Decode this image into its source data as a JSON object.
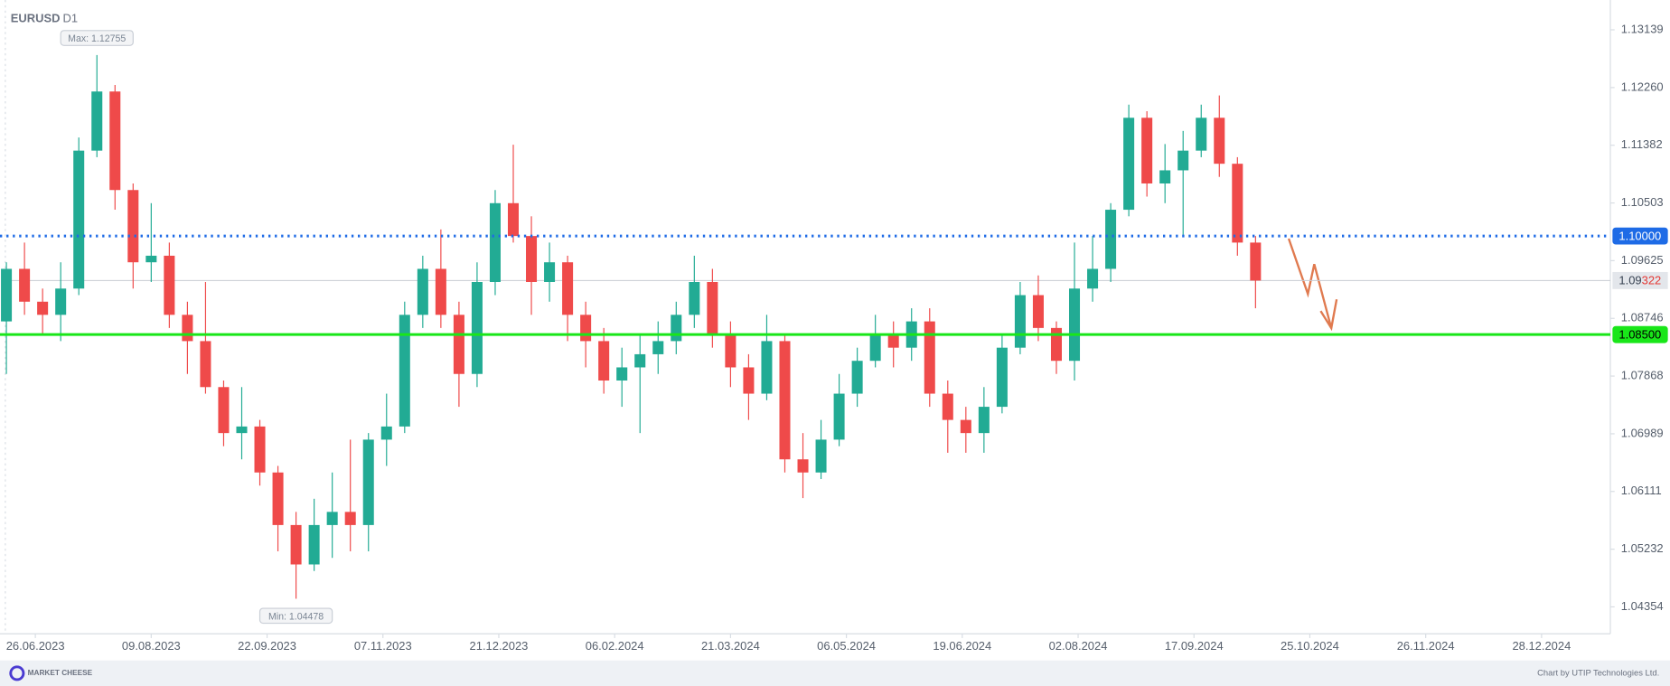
{
  "chart_data": {
    "type": "candlestick",
    "title": "EURUSD",
    "timeframe": "D1",
    "up_color": "#22ab94",
    "down_color": "#ef4a4a",
    "x": [
      0,
      5,
      10,
      15,
      20,
      25,
      30,
      35,
      40,
      45,
      50,
      55,
      60,
      65,
      70,
      75,
      80,
      85,
      90,
      95,
      100,
      105,
      110,
      115,
      120,
      125,
      130,
      135,
      140,
      145,
      150,
      155,
      160,
      165,
      170,
      175,
      180,
      185,
      190,
      195,
      200,
      205,
      210,
      215,
      220,
      225,
      230,
      235,
      240,
      245,
      250,
      255,
      260,
      265,
      270,
      275,
      280,
      285,
      290,
      295,
      300,
      305,
      310,
      315,
      320,
      325,
      330,
      335,
      340,
      345
    ],
    "open": [
      1.087,
      1.095,
      1.09,
      1.088,
      1.092,
      1.113,
      1.122,
      1.107,
      1.096,
      1.097,
      1.088,
      1.084,
      1.077,
      1.07,
      1.071,
      1.064,
      1.056,
      1.05,
      1.056,
      1.058,
      1.056,
      1.069,
      1.071,
      1.088,
      1.095,
      1.088,
      1.079,
      1.093,
      1.105,
      1.1,
      1.093,
      1.096,
      1.088,
      1.084,
      1.078,
      1.08,
      1.082,
      1.084,
      1.088,
      1.093,
      1.085,
      1.08,
      1.076,
      1.084,
      1.066,
      1.064,
      1.069,
      1.076,
      1.081,
      1.085,
      1.083,
      1.087,
      1.076,
      1.072,
      1.07,
      1.074,
      1.083,
      1.091,
      1.086,
      1.081,
      1.092,
      1.095,
      1.104,
      1.118,
      1.108,
      1.11,
      1.113,
      1.118,
      1.111,
      1.099
    ],
    "high": [
      1.096,
      1.099,
      1.092,
      1.096,
      1.115,
      1.12755,
      1.123,
      1.108,
      1.105,
      1.099,
      1.09,
      1.093,
      1.078,
      1.077,
      1.072,
      1.065,
      1.058,
      1.06,
      1.064,
      1.069,
      1.07,
      1.076,
      1.09,
      1.097,
      1.101,
      1.09,
      1.096,
      1.107,
      1.1139,
      1.103,
      1.099,
      1.097,
      1.09,
      1.086,
      1.083,
      1.085,
      1.087,
      1.09,
      1.097,
      1.095,
      1.087,
      1.082,
      1.088,
      1.085,
      1.07,
      1.072,
      1.079,
      1.083,
      1.088,
      1.087,
      1.089,
      1.089,
      1.078,
      1.074,
      1.077,
      1.085,
      1.093,
      1.094,
      1.087,
      1.099,
      1.1,
      1.105,
      1.12,
      1.119,
      1.114,
      1.116,
      1.12,
      1.1214,
      1.112,
      1.1
    ],
    "low": [
      1.079,
      1.088,
      1.085,
      1.084,
      1.091,
      1.112,
      1.104,
      1.092,
      1.093,
      1.086,
      1.079,
      1.076,
      1.068,
      1.066,
      1.062,
      1.052,
      1.04478,
      1.049,
      1.051,
      1.052,
      1.052,
      1.065,
      1.07,
      1.086,
      1.086,
      1.074,
      1.077,
      1.091,
      1.099,
      1.088,
      1.09,
      1.084,
      1.08,
      1.076,
      1.074,
      1.07,
      1.079,
      1.082,
      1.086,
      1.083,
      1.077,
      1.072,
      1.075,
      1.064,
      1.0601,
      1.063,
      1.068,
      1.074,
      1.08,
      1.08,
      1.081,
      1.074,
      1.067,
      1.067,
      1.067,
      1.073,
      1.082,
      1.084,
      1.079,
      1.078,
      1.09,
      1.093,
      1.103,
      1.106,
      1.105,
      1.1,
      1.112,
      1.109,
      1.097,
      1.089
    ],
    "close": [
      1.095,
      1.09,
      1.088,
      1.092,
      1.113,
      1.122,
      1.107,
      1.096,
      1.097,
      1.088,
      1.084,
      1.077,
      1.07,
      1.071,
      1.064,
      1.056,
      1.05,
      1.056,
      1.058,
      1.056,
      1.069,
      1.071,
      1.088,
      1.095,
      1.088,
      1.079,
      1.093,
      1.105,
      1.1,
      1.093,
      1.096,
      1.088,
      1.084,
      1.078,
      1.08,
      1.082,
      1.084,
      1.088,
      1.093,
      1.085,
      1.08,
      1.076,
      1.084,
      1.066,
      1.064,
      1.069,
      1.076,
      1.081,
      1.085,
      1.083,
      1.087,
      1.076,
      1.072,
      1.07,
      1.074,
      1.083,
      1.091,
      1.086,
      1.081,
      1.092,
      1.095,
      1.104,
      1.118,
      1.108,
      1.11,
      1.113,
      1.118,
      1.111,
      1.099,
      1.09322
    ],
    "xlim": [
      -1,
      443
    ],
    "xticks": [
      {
        "value": 8,
        "label": "26.06.2023"
      },
      {
        "value": 40,
        "label": "09.08.2023"
      },
      {
        "value": 72,
        "label": "22.09.2023"
      },
      {
        "value": 104,
        "label": "07.11.2023"
      },
      {
        "value": 136,
        "label": "21.12.2023"
      },
      {
        "value": 168,
        "label": "06.02.2024"
      },
      {
        "value": 200,
        "label": "21.03.2024"
      },
      {
        "value": 232,
        "label": "06.05.2024"
      },
      {
        "value": 264,
        "label": "19.06.2024"
      },
      {
        "value": 296,
        "label": "02.08.2024"
      },
      {
        "value": 328,
        "label": "17.09.2024"
      },
      {
        "value": 360,
        "label": "25.10.2024"
      },
      {
        "value": 392,
        "label": "26.11.2024"
      },
      {
        "value": 424,
        "label": "28.12.2024"
      }
    ],
    "ylim": [
      1.03944,
      1.13593
    ],
    "yticks": [
      1.13139,
      {
        "value": 1.1226,
        "label": "1.12260"
      },
      1.11382,
      1.10503,
      1.09625,
      1.08746,
      1.07868,
      1.06989,
      1.06111,
      1.05232,
      1.04354
    ],
    "levels": [
      {
        "value": 1.1,
        "label": "1.10000",
        "color": "#1e6be6",
        "style": "dotted"
      },
      {
        "value": 1.085,
        "label": "1.08500",
        "color": "#19e619",
        "style": "solid"
      }
    ],
    "last_price": 1.09322,
    "max_label": "Max: 1.12755",
    "min_label": "Min: 1.04478",
    "footer_logo": "MARKET CHEESE",
    "footer_credit": "Chart by UTIP Technologies Ltd."
  }
}
